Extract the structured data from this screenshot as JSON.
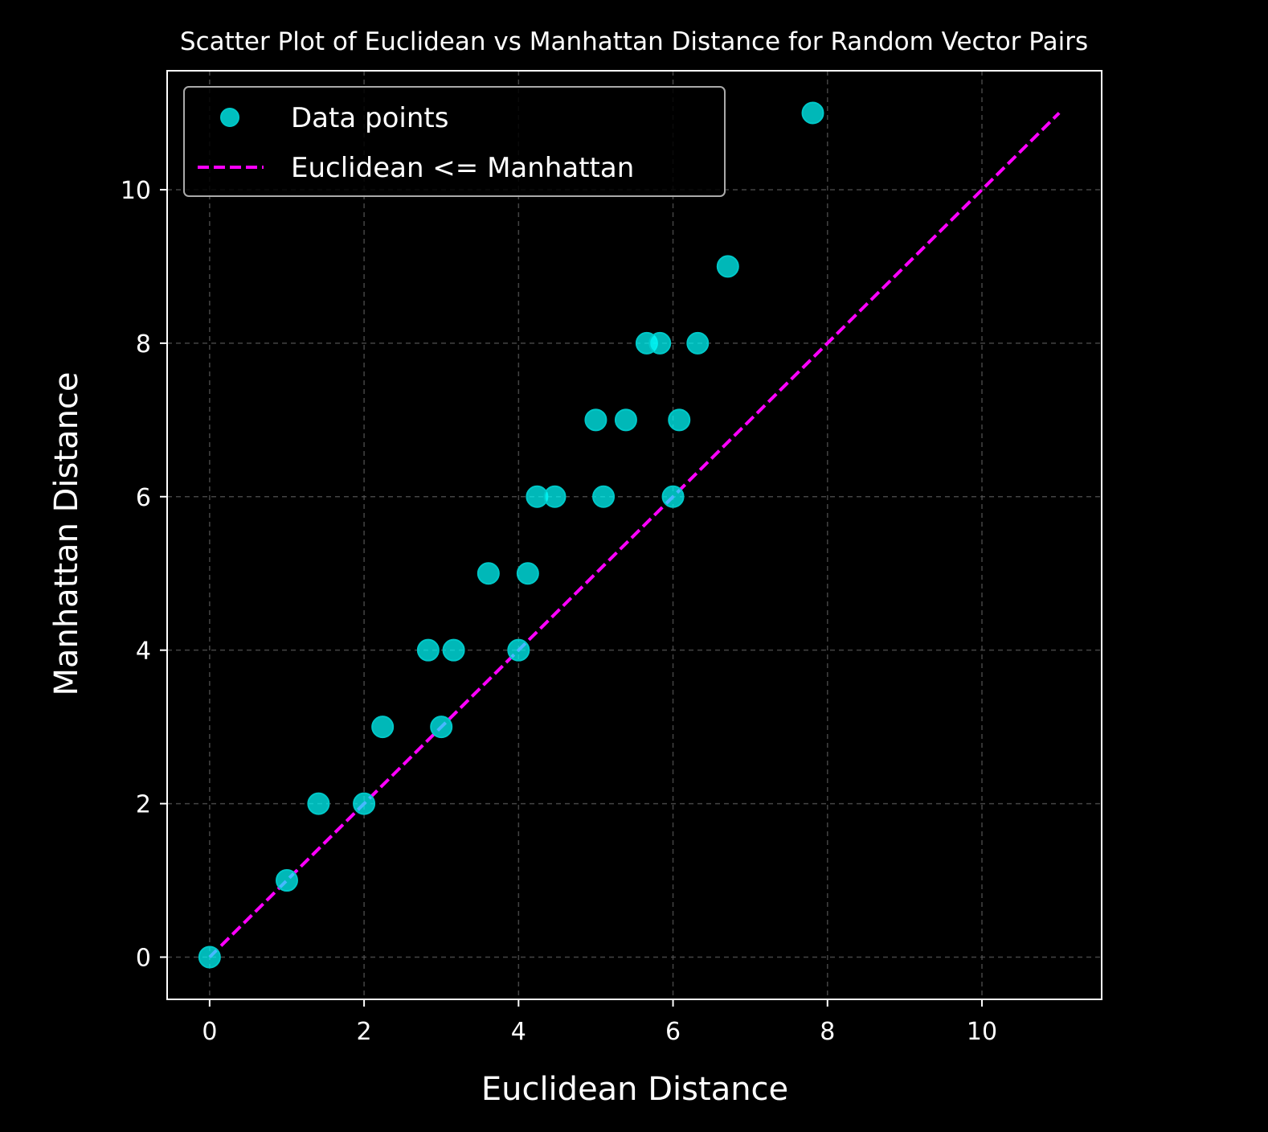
{
  "chart_data": {
    "type": "scatter",
    "title": "Scatter Plot of Euclidean vs Manhattan Distance for Random Vector Pairs",
    "xlabel": "Euclidean Distance",
    "ylabel": "Manhattan Distance",
    "xlim": [
      -0.55,
      11.55
    ],
    "ylim": [
      -0.55,
      11.55
    ],
    "xticks": [
      0,
      2,
      4,
      6,
      8,
      10
    ],
    "yticks": [
      0,
      2,
      4,
      6,
      8,
      10
    ],
    "grid": true,
    "legend_position": "top-left",
    "colors": {
      "background": "#000000",
      "points": "#00ffff",
      "point_edge": "#00c8c8",
      "line": "#ff00ff",
      "grid": "#555555",
      "text": "#ffffff"
    },
    "series": [
      {
        "name": "Data points",
        "kind": "scatter",
        "points": [
          [
            0,
            0
          ],
          [
            1,
            1
          ],
          [
            1.41,
            2
          ],
          [
            2,
            2
          ],
          [
            2.24,
            3
          ],
          [
            3,
            3
          ],
          [
            2.83,
            4
          ],
          [
            3.16,
            4
          ],
          [
            4,
            4
          ],
          [
            3.61,
            5
          ],
          [
            4.12,
            5
          ],
          [
            4.24,
            6
          ],
          [
            4.47,
            6
          ],
          [
            5.1,
            6
          ],
          [
            6,
            6
          ],
          [
            5,
            7
          ],
          [
            5.39,
            7
          ],
          [
            6.08,
            7
          ],
          [
            5.66,
            8
          ],
          [
            5.83,
            8
          ],
          [
            6.32,
            8
          ],
          [
            6.71,
            9
          ],
          [
            7.81,
            11
          ]
        ]
      },
      {
        "name": "Euclidean <= Manhattan",
        "kind": "dashed-line",
        "points": [
          [
            0,
            0
          ],
          [
            11,
            11
          ]
        ]
      }
    ]
  }
}
